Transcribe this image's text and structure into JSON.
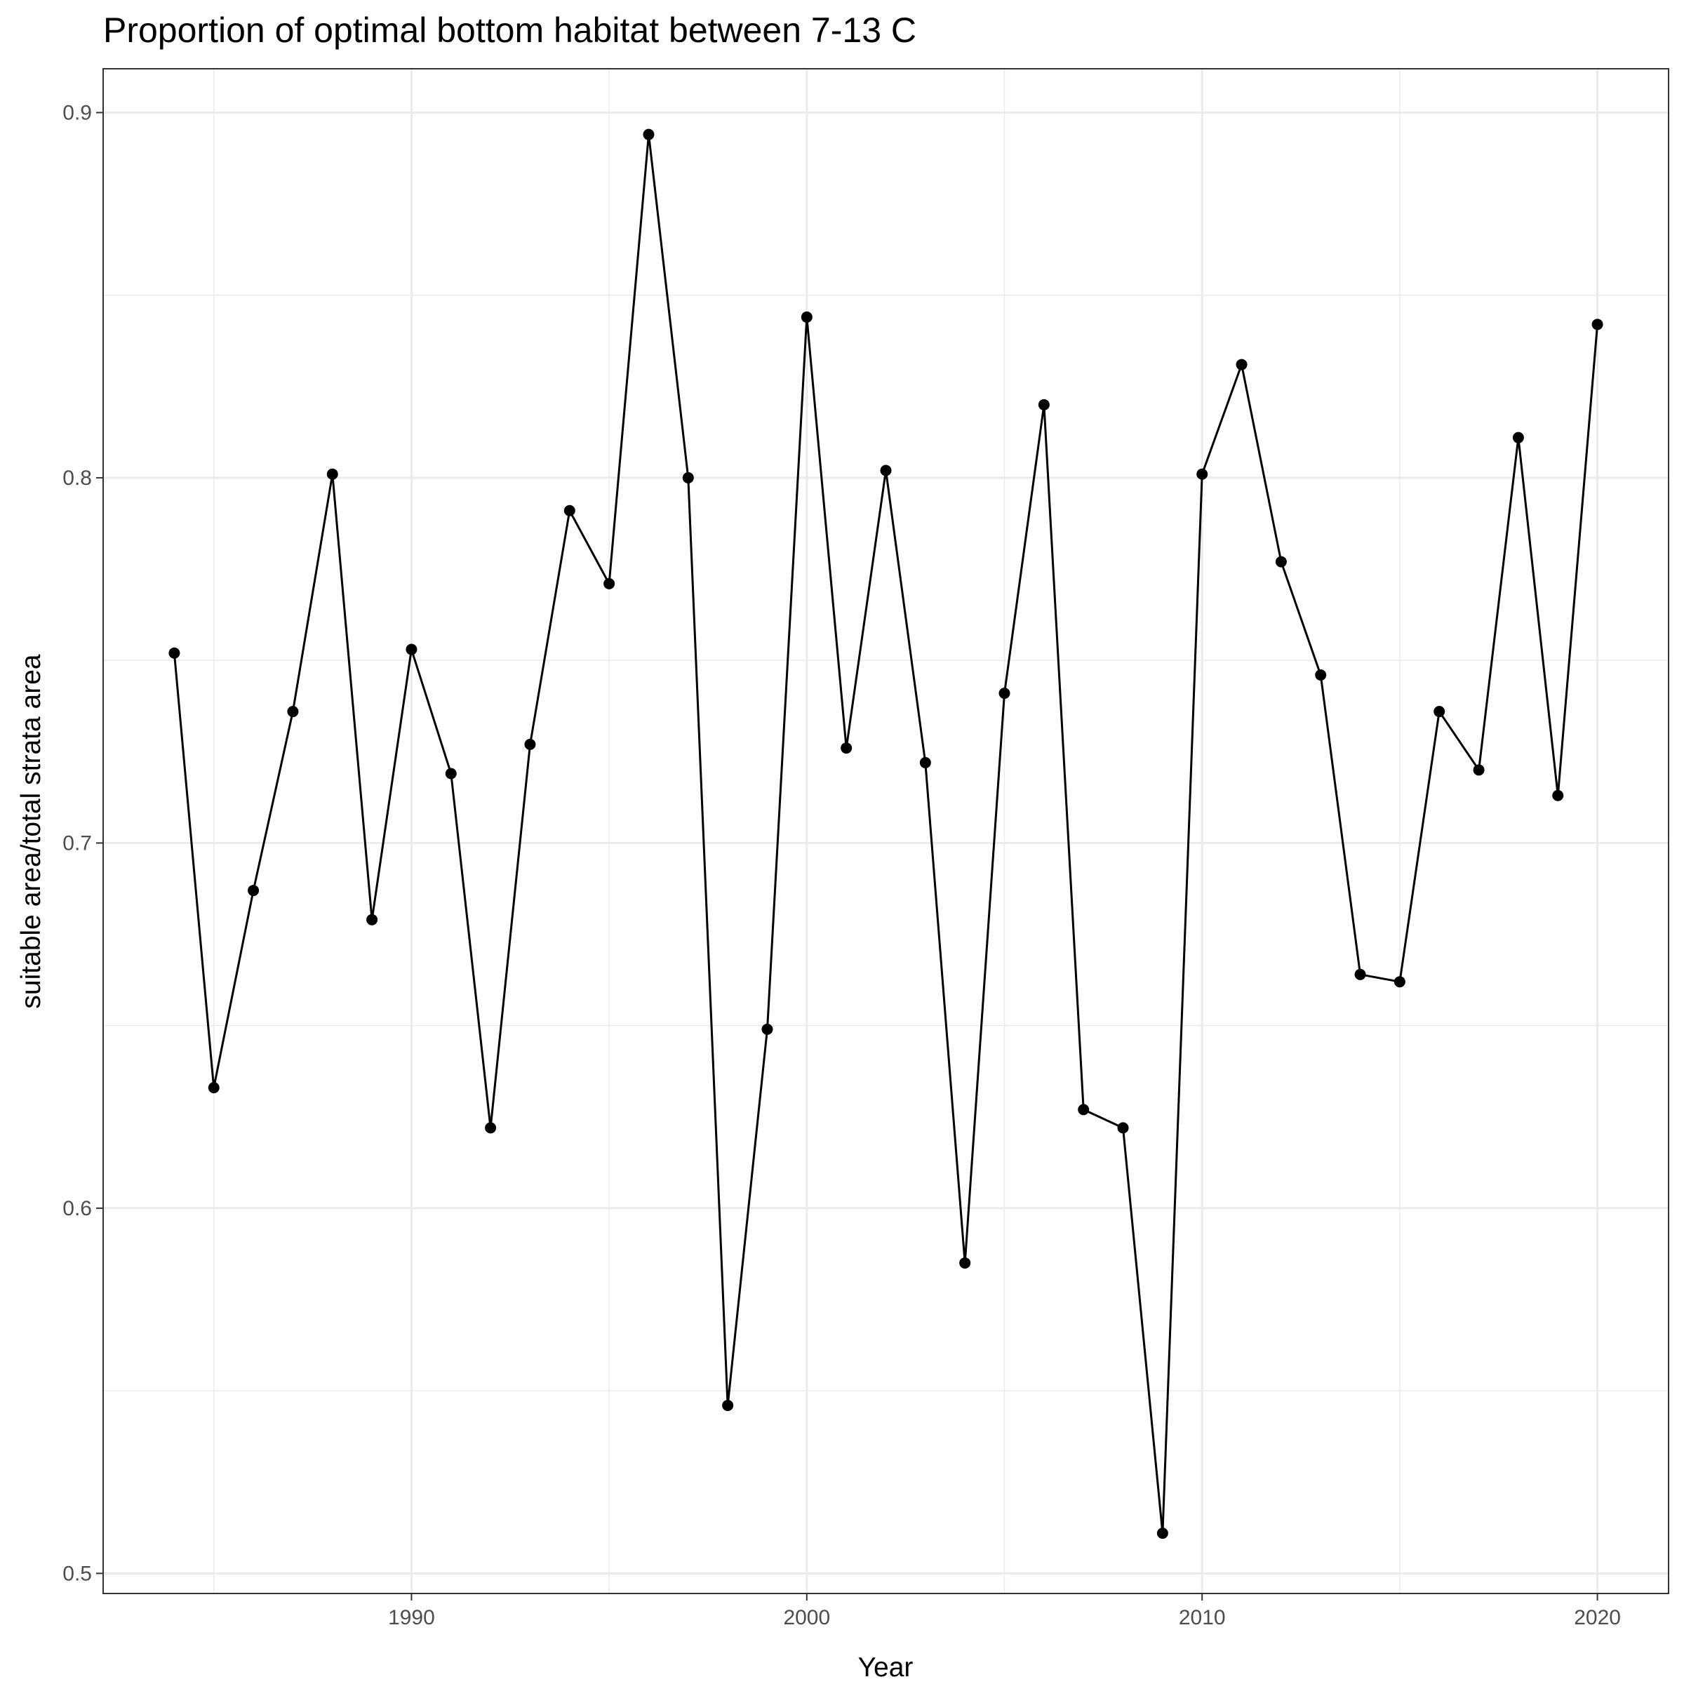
{
  "chart_data": {
    "type": "line",
    "title": "Proportion of optimal bottom habitat between 7-13 C",
    "xlabel": "Year",
    "ylabel": "suitable area/total strata area",
    "xlim": [
      1982.2,
      2021.8
    ],
    "ylim": [
      0.4945,
      0.912
    ],
    "x_ticks": [
      1990,
      2000,
      2010,
      2020
    ],
    "y_ticks": [
      0.5,
      0.6,
      0.7,
      0.8,
      0.9
    ],
    "y_minor": [
      0.55,
      0.65,
      0.75,
      0.85
    ],
    "x_minor": [
      1985,
      1995,
      2005,
      2015
    ],
    "grid": true,
    "legend": "none",
    "series": [
      {
        "x": [
          1984,
          1985,
          1986,
          1987,
          1988,
          1989,
          1990,
          1991,
          1992,
          1993,
          1994,
          1995,
          1996,
          1997,
          1998,
          1999,
          2000,
          2001,
          2002,
          2003,
          2004,
          2005,
          2006,
          2007,
          2008,
          2009,
          2010,
          2011,
          2012,
          2013,
          2014,
          2015,
          2016,
          2017,
          2018,
          2019,
          2020
        ],
        "values": [
          0.752,
          0.633,
          0.687,
          0.736,
          0.801,
          0.679,
          0.753,
          0.719,
          0.622,
          0.727,
          0.791,
          0.771,
          0.894,
          0.8,
          0.546,
          0.649,
          0.844,
          0.726,
          0.802,
          0.722,
          0.585,
          0.741,
          0.82,
          0.627,
          0.622,
          0.511,
          0.801,
          0.831,
          0.777,
          0.746,
          0.664,
          0.662,
          0.736,
          0.72,
          0.811,
          0.713,
          0.842
        ]
      }
    ]
  }
}
